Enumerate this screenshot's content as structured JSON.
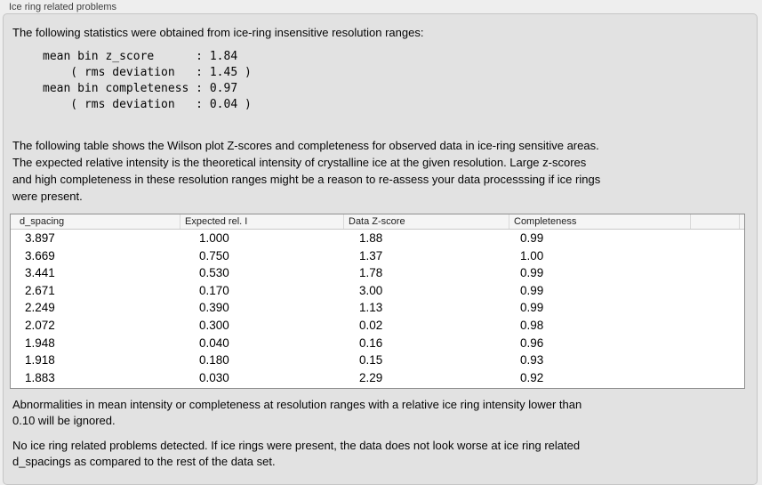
{
  "window": {
    "group_title": "Ice ring related problems"
  },
  "panel": {
    "intro": "The following statistics were obtained from ice-ring insensitive resolution ranges:",
    "stats_block": "mean bin z_score      : 1.84\n    ( rms deviation   : 1.45 )\nmean bin completeness : 0.97\n    ( rms deviation   : 0.04 )",
    "stats": {
      "mean_bin_z_score": "1.84",
      "z_score_rms_deviation": "1.45",
      "mean_bin_completeness": "0.97",
      "completeness_rms_deviation": "0.04"
    },
    "table_description": "The following table shows the Wilson plot Z-scores and completeness for observed data in ice-ring sensitive areas.\nThe expected relative intensity is the theoretical intensity of crystalline ice at the given resolution. Large z-scores\nand high completeness in these resolution ranges might be a reason to re-assess your data processsing if ice rings\nwere present.",
    "ignore_note": "Abnormalities in mean intensity or completeness at resolution ranges with a relative ice ring intensity lower than\n0.10 will be ignored.",
    "conclusion": "No ice ring related problems detected. If ice rings were present, the data does not look worse at ice ring related\nd_spacings as compared to the rest of the data set."
  },
  "table": {
    "columns": [
      "d_spacing",
      "Expected rel. I",
      "Data Z-score",
      "Completeness",
      ""
    ],
    "rows": [
      [
        "3.897",
        "1.000",
        "1.88",
        "0.99"
      ],
      [
        "3.669",
        "0.750",
        "1.37",
        "1.00"
      ],
      [
        "3.441",
        "0.530",
        "1.78",
        "0.99"
      ],
      [
        "2.671",
        "0.170",
        "3.00",
        "0.99"
      ],
      [
        "2.249",
        "0.390",
        "1.13",
        "0.99"
      ],
      [
        "2.072",
        "0.300",
        "0.02",
        "0.98"
      ],
      [
        "1.948",
        "0.040",
        "0.16",
        "0.96"
      ],
      [
        "1.918",
        "0.180",
        "0.15",
        "0.93"
      ],
      [
        "1.883",
        "0.030",
        "2.29",
        "0.92"
      ]
    ]
  },
  "colors": {
    "page_background": "#eeeeee",
    "panel_background": "#e2e2e2",
    "panel_border": "#c5c5c5",
    "table_border": "#8f8f8f",
    "table_header_background": "#f5f5f5",
    "text": "#050505"
  }
}
